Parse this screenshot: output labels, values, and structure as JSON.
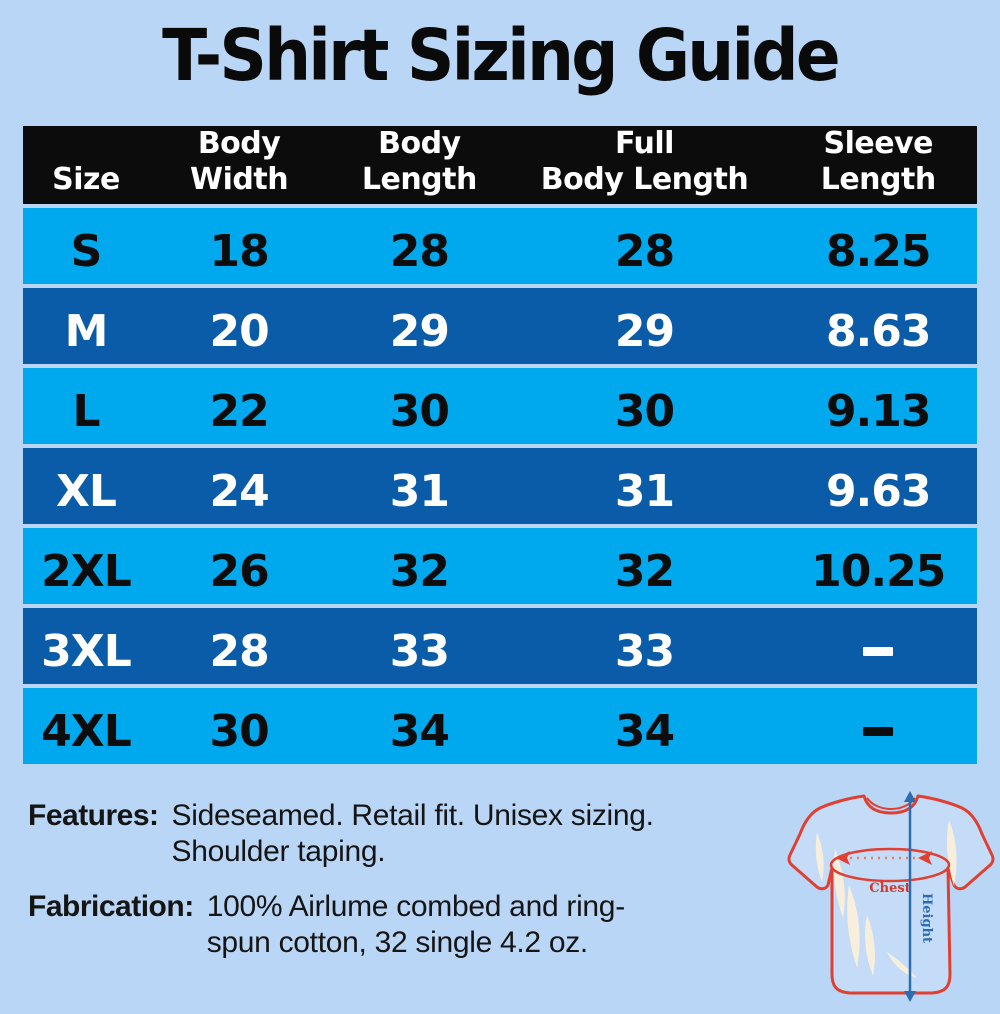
{
  "title": "T-Shirt Sizing Guide",
  "chart_data": {
    "type": "table",
    "title": "T-Shirt Sizing Guide",
    "columns": [
      "Size",
      "Body Width",
      "Body Length",
      "Full Body Length",
      "Sleeve Length"
    ],
    "rows": [
      [
        "S",
        "18",
        "28",
        "28",
        "8.25"
      ],
      [
        "M",
        "20",
        "29",
        "29",
        "8.63"
      ],
      [
        "L",
        "22",
        "30",
        "30",
        "9.13"
      ],
      [
        "XL",
        "24",
        "31",
        "31",
        "9.63"
      ],
      [
        "2XL",
        "26",
        "32",
        "32",
        "10.25"
      ],
      [
        "3XL",
        "28",
        "33",
        "33",
        "–"
      ],
      [
        "4XL",
        "30",
        "34",
        "34",
        "–"
      ]
    ]
  },
  "header": [
    {
      "line1": "",
      "line2": "Size"
    },
    {
      "line1": "Body",
      "line2": "Width"
    },
    {
      "line1": "Body",
      "line2": "Length"
    },
    {
      "line1": "Full",
      "line2": "Body Length"
    },
    {
      "line1": "Sleeve",
      "line2": "Length"
    }
  ],
  "notes": {
    "features_label": "Features:",
    "features_lines": [
      "Sideseamed. Retail fit. Unisex sizing.",
      "Shoulder taping."
    ],
    "fabrication_label": "Fabrication:",
    "fabrication_lines": [
      "100% Airlume combed and ring-",
      "spun cotton, 32 single 4.2 oz."
    ]
  },
  "diagram": {
    "chest_label": "Chest",
    "height_label": "Height"
  },
  "colors": {
    "background": "#b9d6f6",
    "row_cyan": "#00a8ed",
    "row_dark_blue": "#0b5ca8",
    "header_bg": "#0c0c0c",
    "text_dark": "#0d0d0d",
    "text_light": "#ffffff",
    "shirt_outline_red": "#e04031",
    "height_arrow_blue": "#2e6cb0"
  }
}
